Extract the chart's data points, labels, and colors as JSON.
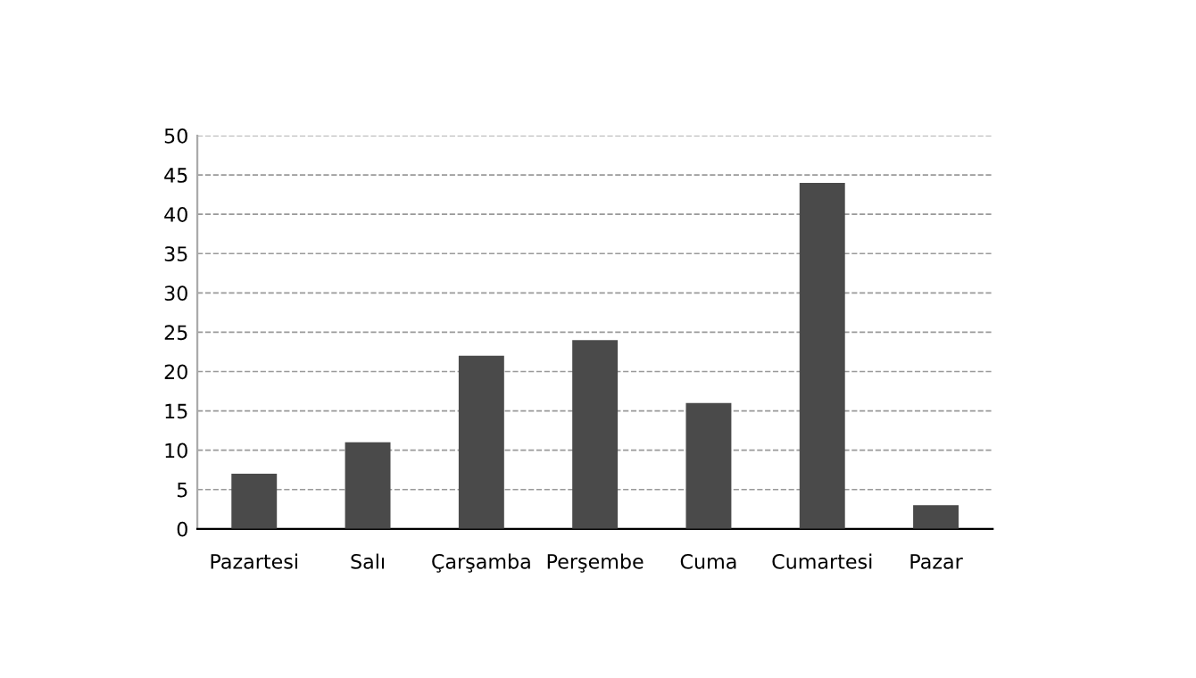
{
  "chart_data": {
    "type": "bar",
    "categories": [
      "Pazartesi",
      "Salı",
      "Çarşamba",
      "Perşembe",
      "Cuma",
      "Cumartesi",
      "Pazar"
    ],
    "values": [
      7,
      11,
      22,
      24,
      16,
      44,
      3
    ],
    "color": "#4a4a4a",
    "ylim": [
      0,
      50
    ],
    "yticks": [
      0,
      5,
      10,
      15,
      20,
      25,
      30,
      35,
      40,
      45,
      50
    ],
    "grid": "y",
    "legend": false
  }
}
